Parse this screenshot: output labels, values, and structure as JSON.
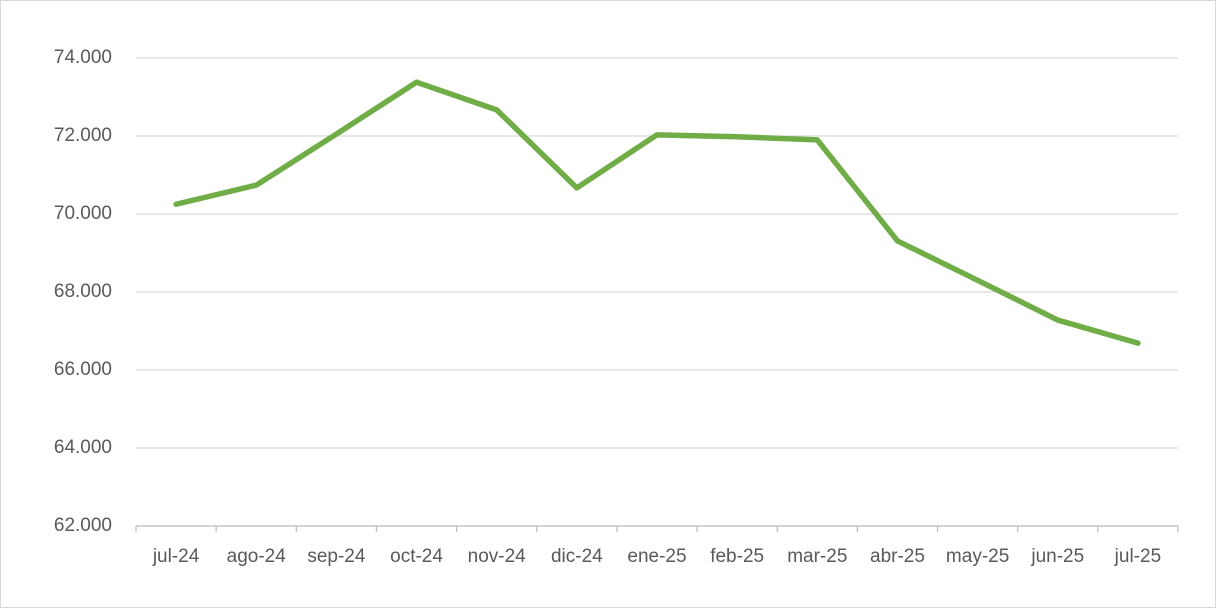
{
  "chart_data": {
    "type": "line",
    "categories": [
      "jul-24",
      "ago-24",
      "sep-24",
      "oct-24",
      "nov-24",
      "dic-24",
      "ene-25",
      "feb-25",
      "mar-25",
      "abr-25",
      "may-25",
      "jun-25",
      "jul-25"
    ],
    "values": [
      70250,
      70740,
      72050,
      73380,
      72670,
      70670,
      72030,
      71980,
      71900,
      69310,
      68300,
      67280,
      66690
    ],
    "color": "#70ad47",
    "ylim": [
      62000,
      74000
    ],
    "yticks": [
      {
        "value": 62000,
        "label": "62.000"
      },
      {
        "value": 64000,
        "label": "64.000"
      },
      {
        "value": 66000,
        "label": "66.000"
      },
      {
        "value": 68000,
        "label": "68.000"
      },
      {
        "value": 70000,
        "label": "70.000"
      },
      {
        "value": 72000,
        "label": "72.000"
      },
      {
        "value": 74000,
        "label": "74.000"
      }
    ],
    "grid": true
  }
}
